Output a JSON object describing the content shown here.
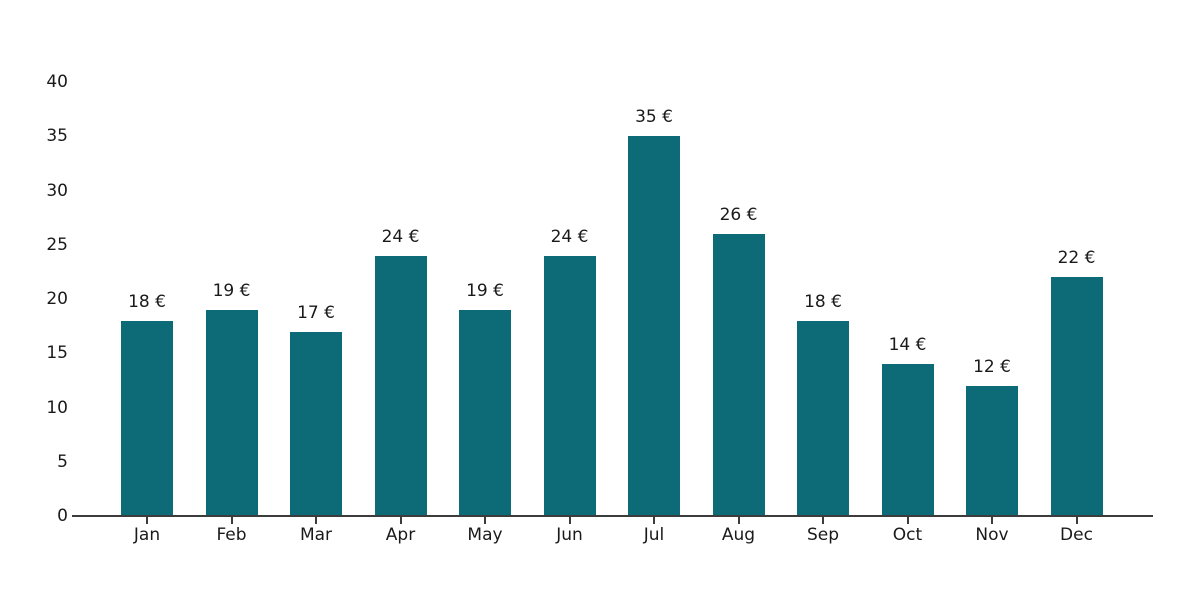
{
  "chart_data": {
    "type": "bar",
    "title": "",
    "xlabel": "",
    "ylabel": "",
    "categories": [
      "Jan",
      "Feb",
      "Mar",
      "Apr",
      "May",
      "Jun",
      "Jul",
      "Aug",
      "Sep",
      "Oct",
      "Nov",
      "Dec"
    ],
    "values": [
      18,
      19,
      17,
      24,
      19,
      24,
      35,
      26,
      18,
      14,
      12,
      22
    ],
    "value_labels": [
      "18 €",
      "19 €",
      "17 €",
      "24 €",
      "19 €",
      "24 €",
      "35 €",
      "26 €",
      "18 €",
      "14 €",
      "12 €",
      "22 €"
    ],
    "yticks": [
      0,
      5,
      10,
      15,
      20,
      25,
      30,
      35,
      40
    ],
    "ylim": [
      0,
      40
    ],
    "grid": false,
    "legend": false,
    "colors": {
      "bar": "#0d6b78",
      "axis": "#3c3c3c",
      "text": "#1a1a1a",
      "background": "#ffffff"
    }
  }
}
